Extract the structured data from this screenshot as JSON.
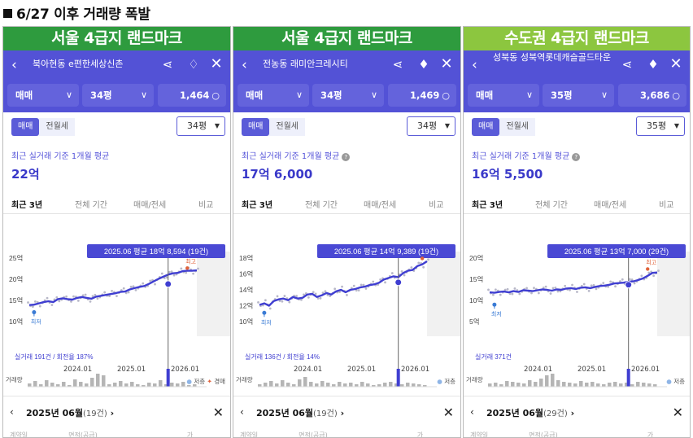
{
  "heading": "6/27 이후 거래량 폭발",
  "panels": [
    {
      "banner": "서울 4급지 랜드마크",
      "title": "북아현동 e편한세상신촌",
      "deal_type": "매매",
      "size_select": "34평",
      "count": "1,464",
      "toggle": [
        "매매",
        "전월세"
      ],
      "size_box": "34평",
      "avg_label": "최근 실거래 기준 1개월 평균",
      "avg_value": "22억",
      "tabs": [
        "최근 3년",
        "전체 기간",
        "매매/전세",
        "비교"
      ],
      "tooltip": "2025.06 평균 18억 8,594 (19건)",
      "y_ticks": [
        "25억",
        "20억",
        "15억",
        "10억"
      ],
      "trade_note": "실거래 191건 / 회전율 187%",
      "min_label": "최저",
      "max_label": "최고",
      "vol_label": "거래량",
      "x_ticks": [
        "2024.01",
        "2025.01",
        "2026.01"
      ],
      "legend": [
        "저층",
        "경매"
      ],
      "month": "2025년 06월",
      "month_count": "(19건)",
      "footer": [
        "계약일",
        "면적(공급)",
        "가격"
      ],
      "chart_data": {
        "type": "line",
        "x_ticks": [
          "2024.01",
          "2025.01",
          "2026.01"
        ],
        "y_ticks": [
          "25억",
          "20억",
          "15억",
          "10억"
        ],
        "ylim": [
          10,
          25
        ],
        "tooltip": {
          "label": "2025.06 평균 18억 8,594 (19건)",
          "month": "2025.06",
          "value": 18.86,
          "count": 19
        },
        "series": [
          {
            "values": [
              13.9,
              14.0,
              14.3,
              14.6,
              14.8,
              14.6,
              15.3,
              15.5,
              15.3,
              15.2,
              15.6,
              15.8,
              15.6,
              15.4,
              15.9,
              16.1,
              16.3,
              16.5,
              16.7,
              17.0,
              17.1,
              17.6,
              17.9,
              18.2,
              18.4,
              18.9,
              19.5,
              20.1,
              20.6,
              21.1,
              21.4,
              21.5,
              21.9,
              22.0,
              22.0,
              22.1
            ]
          }
        ],
        "min": {
          "label": "최저",
          "value": 12.2
        },
        "max": {
          "label": "최고",
          "value": 23.2
        }
      }
    },
    {
      "banner": "서울 4급지 랜드마크",
      "title": "전농동 래미안크레시티",
      "deal_type": "매매",
      "size_select": "34평",
      "count": "1,469",
      "toggle": [
        "매매",
        "전월세"
      ],
      "size_box": "34평",
      "avg_label": "최근 실거래 기준 1개월 평균",
      "avg_value": "17억 6,000",
      "tabs": [
        "최근 3년",
        "전체 기간",
        "매매/전세",
        "비교"
      ],
      "tooltip": "2025.06 평균 14억 9,389 (19건)",
      "y_ticks": [
        "18억",
        "16억",
        "14억",
        "12억",
        "10억"
      ],
      "trade_note": "실거래 136건 / 회전율 14%",
      "min_label": "최저",
      "max_label": "",
      "vol_label": "거래량",
      "x_ticks": [
        "2024.01",
        "2025.01",
        "2026.01"
      ],
      "legend": [
        "저층"
      ],
      "month": "2025년 06월",
      "month_count": "(19건)",
      "footer": [
        "계약일",
        "면적(공급)",
        "가격"
      ],
      "chart_data": {
        "type": "line",
        "x_ticks": [
          "2024.01",
          "2025.01",
          "2026.01"
        ],
        "y_ticks": [
          "18억",
          "16억",
          "14억",
          "12억",
          "10억"
        ],
        "ylim": [
          10,
          18
        ],
        "tooltip": {
          "label": "2025.06 평균 14억 9,389 (19건)",
          "month": "2025.06",
          "value": 14.94,
          "count": 19
        },
        "series": [
          {
            "values": [
              12.1,
              12.3,
              12.0,
              12.6,
              12.8,
              12.9,
              12.7,
              13.1,
              12.9,
              13.0,
              13.4,
              13.5,
              13.1,
              13.3,
              13.6,
              13.4,
              13.8,
              14.0,
              13.7,
              14.0,
              14.1,
              14.3,
              14.4,
              14.6,
              14.7,
              14.9,
              15.3,
              15.5,
              15.7,
              15.6,
              16.1,
              16.4,
              16.5,
              17.0,
              17.2,
              17.6
            ]
          }
        ],
        "min": {
          "label": "최저",
          "value": 11.1
        },
        "max": {
          "label": "",
          "value": 18.0
        }
      }
    },
    {
      "banner": "수도권 4급지 랜드마크",
      "title": "성북동 성북역롯데캐슬골드타운",
      "deal_type": "매매",
      "size_select": "35평",
      "count": "3,686",
      "toggle": [
        "매매",
        "전월세"
      ],
      "size_box": "35평",
      "avg_label": "최근 실거래 기준 1개월 평균",
      "avg_value": "16억 5,500",
      "tabs": [
        "최근 3년",
        "전체 기간",
        "매매/전세",
        "비교"
      ],
      "tooltip": "2025.06 평균 13억 7,000 (29건)",
      "y_ticks": [
        "20억",
        "15억",
        "10억",
        "5억"
      ],
      "trade_note": "실거래 371건",
      "min_label": "최저",
      "max_label": "최고",
      "vol_label": "거래량",
      "x_ticks": [
        "2024.01",
        "2025.01",
        "2026.01"
      ],
      "legend": [
        "저층"
      ],
      "month": "2025년 06월",
      "month_count": "(29건)",
      "footer": [
        "계약일",
        "면적(공급)",
        "가격"
      ],
      "chart_data": {
        "type": "line",
        "x_ticks": [
          "2024.01",
          "2025.01",
          "2026.01"
        ],
        "y_ticks": [
          "20억",
          "15억",
          "10억",
          "5억"
        ],
        "ylim": [
          5,
          20
        ],
        "tooltip": {
          "label": "2025.06 평균 13억 7,000 (29건)",
          "month": "2025.06",
          "value": 13.7,
          "count": 29
        },
        "series": [
          {
            "values": [
              11.9,
              11.8,
              12.0,
              12.1,
              11.9,
              12.2,
              12.0,
              12.4,
              12.3,
              12.2,
              12.4,
              12.6,
              12.5,
              12.3,
              12.6,
              12.5,
              12.8,
              12.9,
              12.7,
              13.0,
              13.1,
              12.9,
              13.2,
              13.4,
              13.5,
              13.7,
              14.0,
              14.1,
              14.2,
              14.4,
              14.5,
              14.8,
              15.2,
              15.8,
              16.5,
              16.6
            ]
          }
        ],
        "min": {
          "label": "최저",
          "value": 9.0
        },
        "max": {
          "label": "최고",
          "value": 18.0
        }
      }
    }
  ]
}
